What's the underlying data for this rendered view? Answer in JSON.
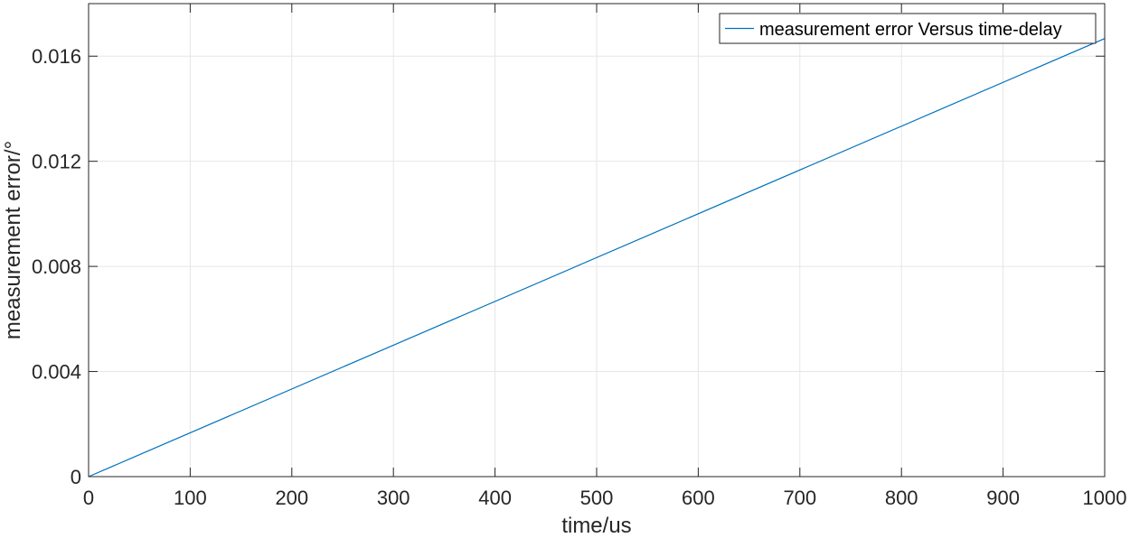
{
  "chart_data": {
    "type": "line",
    "title": "",
    "xlabel": "time/us",
    "ylabel": "measurement error/°",
    "xlim": [
      0,
      1000
    ],
    "ylim": [
      0,
      0.018
    ],
    "xticks": [
      0,
      100,
      200,
      300,
      400,
      500,
      600,
      700,
      800,
      900,
      1000
    ],
    "xtick_labels": [
      "0",
      "100",
      "200",
      "300",
      "400",
      "500",
      "600",
      "700",
      "800",
      "900",
      "1000"
    ],
    "yticks": [
      0,
      0.004,
      0.008,
      0.012,
      0.016
    ],
    "ytick_labels": [
      "0",
      "0.004",
      "0.008",
      "0.012",
      "0.016"
    ],
    "grid": true,
    "legend_position": "top-right",
    "series": [
      {
        "name": "measurement error Versus time-delay",
        "color": "#0072bd",
        "x": [
          0,
          1000
        ],
        "y": [
          0,
          0.01667
        ]
      }
    ]
  }
}
